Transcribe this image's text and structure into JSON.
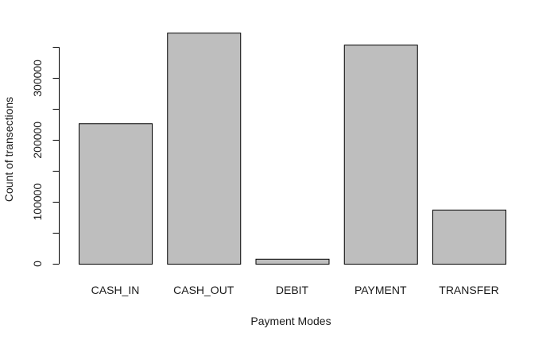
{
  "chart_data": {
    "type": "bar",
    "title": "",
    "xlabel": "Payment Modes",
    "ylabel": "Count of transections",
    "categories": [
      "CASH_IN",
      "CASH_OUT",
      "DEBIT",
      "PAYMENT",
      "TRANSFER"
    ],
    "values": [
      227000,
      373500,
      8000,
      354000,
      87500
    ],
    "ylim": [
      0,
      375000
    ],
    "yticks": [
      0,
      100000,
      200000,
      300000
    ],
    "ytick_labels": [
      "0",
      "100000",
      "200000",
      "300000"
    ],
    "grid": false,
    "legend": "none",
    "colors": {
      "bar_fill": "#bebebe",
      "bar_stroke": "#000000",
      "background": "#ffffff"
    }
  }
}
